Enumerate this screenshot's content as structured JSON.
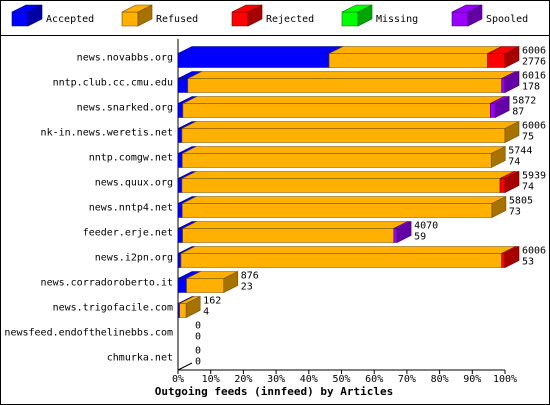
{
  "chart_data": {
    "type": "bar",
    "orientation": "horizontal",
    "stacked": true,
    "title": "Outgoing feeds (innfeed) by Articles",
    "categories": [
      "news.novabbs.org",
      "nntp.club.cc.cmu.edu",
      "news.snarked.org",
      "nk-in.news.weretis.net",
      "nntp.comgw.net",
      "news.quux.org",
      "news.nntp4.net",
      "feeder.erje.net",
      "news.i2pn.org",
      "news.corradoroberto.it",
      "news.trigofacile.com",
      "newsfeed.endofthelinebbs.com",
      "chmurka.net"
    ],
    "series": [
      {
        "name": "Accepted",
        "color": "#0000ff",
        "values": [
          46.2,
          3,
          1.5,
          1.2,
          1.3,
          1.2,
          1.3,
          1.4,
          0.9,
          2.6,
          0.5,
          0,
          0
        ]
      },
      {
        "name": "Refused",
        "color": "#ffb000",
        "values": [
          48.5,
          96,
          94,
          98.8,
          94.5,
          97.3,
          94.7,
          64.6,
          98.1,
          11.4,
          2,
          0,
          0
        ]
      },
      {
        "name": "Rejected",
        "color": "#ff0000",
        "values": [
          5.3,
          0,
          0,
          0,
          0,
          1.5,
          0,
          0,
          1,
          0,
          0,
          0,
          0
        ]
      },
      {
        "name": "Missing",
        "color": "#00ff00",
        "values": [
          0,
          0,
          0,
          0,
          0,
          0,
          0,
          0,
          0,
          0,
          0,
          0,
          0
        ]
      },
      {
        "name": "Spooled",
        "color": "#9900ff",
        "values": [
          0,
          1,
          1.5,
          0,
          0,
          0,
          0,
          1,
          0,
          0,
          0,
          0,
          0
        ]
      }
    ],
    "offered": [
      6006,
      6016,
      5872,
      6006,
      5744,
      5939,
      5805,
      4070,
      6006,
      876,
      162,
      0,
      0
    ],
    "accepted": [
      2776,
      178,
      87,
      75,
      74,
      74,
      73,
      59,
      53,
      23,
      4,
      0,
      0
    ],
    "xlim": [
      0,
      100
    ],
    "xticks": [
      {
        "value": 0,
        "label": "0%"
      },
      {
        "value": 10,
        "label": "10%"
      },
      {
        "value": 20,
        "label": "20%"
      },
      {
        "value": 30,
        "label": "30%"
      },
      {
        "value": 40,
        "label": "40%"
      },
      {
        "value": 50,
        "label": "50%"
      },
      {
        "value": 60,
        "label": "60%"
      },
      {
        "value": 70,
        "label": "70%"
      },
      {
        "value": 80,
        "label": "80%"
      },
      {
        "value": 90,
        "label": "90%"
      },
      {
        "value": 100,
        "label": "100%"
      }
    ]
  }
}
